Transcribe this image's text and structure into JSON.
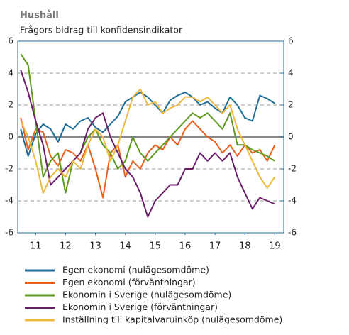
{
  "chart_data": {
    "type": "line",
    "title": "Hushåll",
    "subtitle": "Frågors bidrag till konfidensindikator",
    "x": [
      11,
      11.25,
      11.5,
      11.75,
      12,
      12.25,
      12.5,
      12.75,
      13,
      13.25,
      13.5,
      13.75,
      14,
      14.25,
      14.5,
      14.75,
      15,
      15.25,
      15.5,
      15.75,
      16,
      16.25,
      16.5,
      16.75,
      17,
      17.25,
      17.5,
      17.75,
      18,
      18.25,
      18.5,
      18.75,
      19,
      19.25,
      19.5
    ],
    "xlim": [
      10.9,
      19.8
    ],
    "xticks": [
      {
        "value": 11.5,
        "label": "11"
      },
      {
        "value": 12.5,
        "label": "12"
      },
      {
        "value": 13.5,
        "label": "13"
      },
      {
        "value": 14.5,
        "label": "14"
      },
      {
        "value": 15.5,
        "label": "15"
      },
      {
        "value": 16.5,
        "label": "16"
      },
      {
        "value": 17.5,
        "label": "17"
      },
      {
        "value": 18.5,
        "label": "18"
      },
      {
        "value": 19.5,
        "label": "19"
      }
    ],
    "ylim": [
      -6,
      6
    ],
    "yticks": [
      -6,
      -4,
      -2,
      0,
      2,
      4,
      6
    ],
    "y2lim": [
      -6,
      6
    ],
    "y2ticks": [
      -6,
      -4,
      -2,
      0,
      2,
      4,
      6
    ],
    "grid": true,
    "series": [
      {
        "name": "Egen ekonomi (nulägesomdöme)",
        "color": "#1f6e97",
        "values": [
          0.5,
          -1.2,
          0.2,
          0.8,
          0.5,
          -0.3,
          0.8,
          0.5,
          1.0,
          1.2,
          0.6,
          0.3,
          0.8,
          1.3,
          2.2,
          2.5,
          2.8,
          2.5,
          2.0,
          1.5,
          2.3,
          2.6,
          2.8,
          2.5,
          2.0,
          2.2,
          1.8,
          1.5,
          2.5,
          2.0,
          1.2,
          1.0,
          2.6,
          2.4,
          2.1
        ]
      },
      {
        "name": "Egen ekonomi (förväntningar)",
        "color": "#e8601c",
        "values": [
          1.2,
          -0.8,
          0.5,
          0.3,
          -1.2,
          -1.8,
          -0.8,
          -1.0,
          -1.5,
          -0.5,
          -2.0,
          -3.8,
          -1.0,
          -0.5,
          -2.5,
          -1.5,
          -2.0,
          -1.0,
          -0.5,
          -0.8,
          0.0,
          -0.5,
          0.5,
          1.0,
          0.5,
          0.0,
          -0.3,
          -1.0,
          -0.5,
          -1.2,
          -0.5,
          -1.0,
          -0.8,
          -1.5,
          -0.5
        ]
      },
      {
        "name": "Ekonomin i Sverige (nulägesomdöme)",
        "color": "#5e9a1e",
        "values": [
          5.2,
          4.5,
          1.0,
          -2.5,
          -1.5,
          -1.0,
          -3.5,
          -1.5,
          -1.0,
          0.0,
          0.5,
          -0.5,
          -1.0,
          -2.0,
          -1.5,
          0.0,
          -1.0,
          -1.5,
          -1.0,
          -0.5,
          0.0,
          0.5,
          1.0,
          1.5,
          1.2,
          1.5,
          1.0,
          0.5,
          1.5,
          -0.5,
          -0.5,
          -0.8,
          -1.0,
          -1.2,
          -1.5
        ]
      },
      {
        "name": "Ekonomin i Sverige (förväntningar)",
        "color": "#6b1f6b",
        "values": [
          4.2,
          2.8,
          1.0,
          -0.5,
          -3.0,
          -2.5,
          -2.0,
          -1.5,
          -1.0,
          0.5,
          1.2,
          1.5,
          0.0,
          -1.0,
          -2.0,
          -2.5,
          -3.5,
          -5.0,
          -4.0,
          -3.5,
          -3.0,
          -3.0,
          -2.0,
          -2.0,
          -1.0,
          -1.5,
          -1.0,
          -1.5,
          -1.0,
          -2.5,
          -3.5,
          -4.5,
          -3.8,
          -4.0,
          -4.2
        ]
      },
      {
        "name": "Inställning till kapitalvaruinköp (nulägesomdöme)",
        "color": "#f0b840",
        "values": [
          1.0,
          0.0,
          -1.5,
          -3.5,
          -2.5,
          -2.0,
          -2.5,
          -1.5,
          -2.0,
          -0.5,
          0.5,
          0.0,
          -1.5,
          -0.5,
          1.0,
          2.5,
          3.0,
          2.0,
          2.2,
          1.5,
          1.8,
          2.0,
          2.5,
          2.5,
          2.2,
          2.5,
          2.0,
          1.5,
          2.0,
          0.5,
          -0.5,
          -1.5,
          -2.5,
          -3.2,
          -2.5
        ]
      }
    ]
  }
}
